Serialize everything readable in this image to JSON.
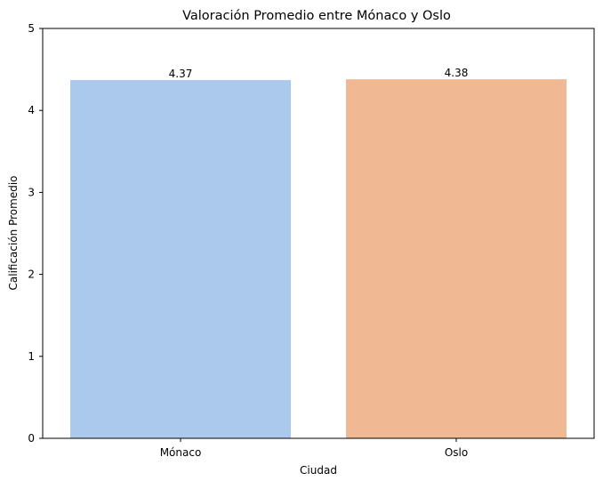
{
  "chart_data": {
    "type": "bar",
    "title": "Valoración Promedio entre Mónaco y Oslo",
    "xlabel": "Ciudad",
    "ylabel": "Calificación Promedio",
    "categories": [
      "Mónaco",
      "Oslo"
    ],
    "values": [
      4.37,
      4.38
    ],
    "data_labels": [
      "4.37",
      "4.38"
    ],
    "colors": [
      "#abc9ed",
      "#f0b994"
    ],
    "ylim": [
      0,
      5
    ],
    "yticks": [
      0,
      1,
      2,
      3,
      4,
      5
    ],
    "grid": false,
    "legend": "none"
  }
}
